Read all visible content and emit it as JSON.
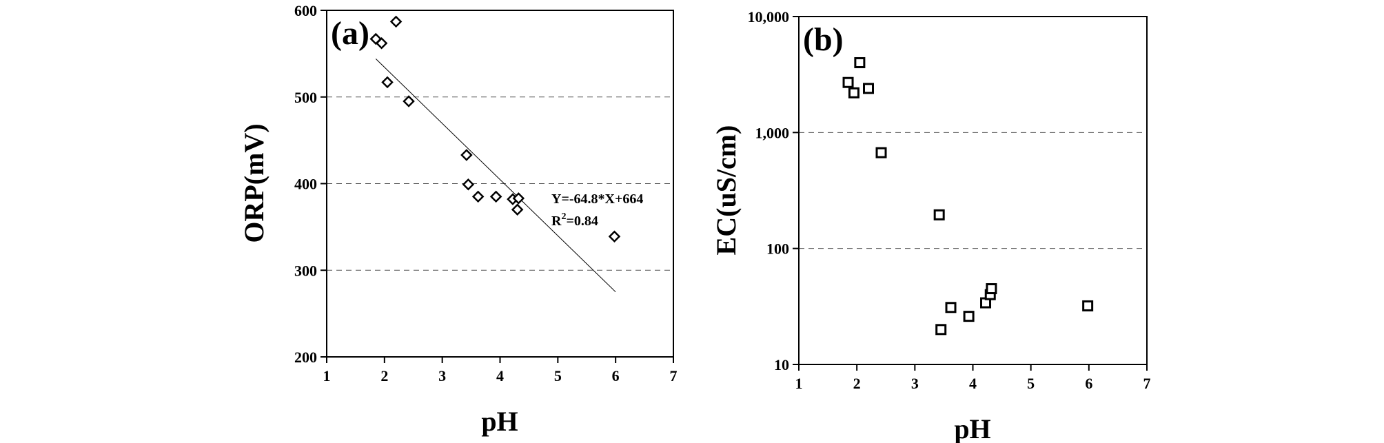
{
  "chart_data": [
    {
      "type": "scatter",
      "panel_label": "(a)",
      "xlabel": "pH",
      "ylabel": "ORP(mV)",
      "xlim": [
        1,
        7
      ],
      "ylim": [
        200,
        600
      ],
      "xticks": [
        1,
        2,
        3,
        4,
        5,
        6,
        7
      ],
      "yticks": [
        200,
        300,
        400,
        500,
        600
      ],
      "grid_y": [
        300,
        400,
        500
      ],
      "marker": "diamond",
      "series": [
        {
          "x": [
            1.85,
            1.95,
            2.2,
            2.05,
            2.42,
            3.42,
            3.45,
            3.62,
            3.93,
            4.22,
            4.3,
            4.32,
            5.98
          ],
          "y": [
            567,
            562,
            587,
            517,
            495,
            433,
            399,
            385,
            385,
            382,
            370,
            383,
            339
          ]
        }
      ],
      "fit_line": {
        "x": [
          1.85,
          6.0
        ],
        "y": [
          544,
          275
        ]
      },
      "annotation": {
        "line1": "Y=-64.8*X+664",
        "line2_base": "R",
        "line2_sup": "2",
        "line2_rest": "=0.84"
      }
    },
    {
      "type": "scatter",
      "panel_label": "(b)",
      "xlabel": "pH",
      "ylabel": "EC(uS/cm)",
      "xlim": [
        1,
        7
      ],
      "ylim": [
        10,
        10000
      ],
      "yscale": "log",
      "xticks": [
        1,
        2,
        3,
        4,
        5,
        6,
        7
      ],
      "yticks": [
        10,
        100,
        1000,
        10000
      ],
      "ytick_labels": [
        "10",
        "100",
        "1,000",
        "10,000"
      ],
      "grid_y": [
        100,
        1000
      ],
      "marker": "square",
      "series": [
        {
          "x": [
            1.85,
            1.95,
            2.05,
            2.2,
            2.42,
            3.42,
            3.45,
            3.62,
            3.93,
            4.22,
            4.3,
            4.32,
            5.98
          ],
          "y": [
            2700,
            2200,
            4000,
            2400,
            670,
            195,
            20,
            31,
            26,
            34,
            40,
            45,
            32
          ]
        }
      ]
    }
  ]
}
